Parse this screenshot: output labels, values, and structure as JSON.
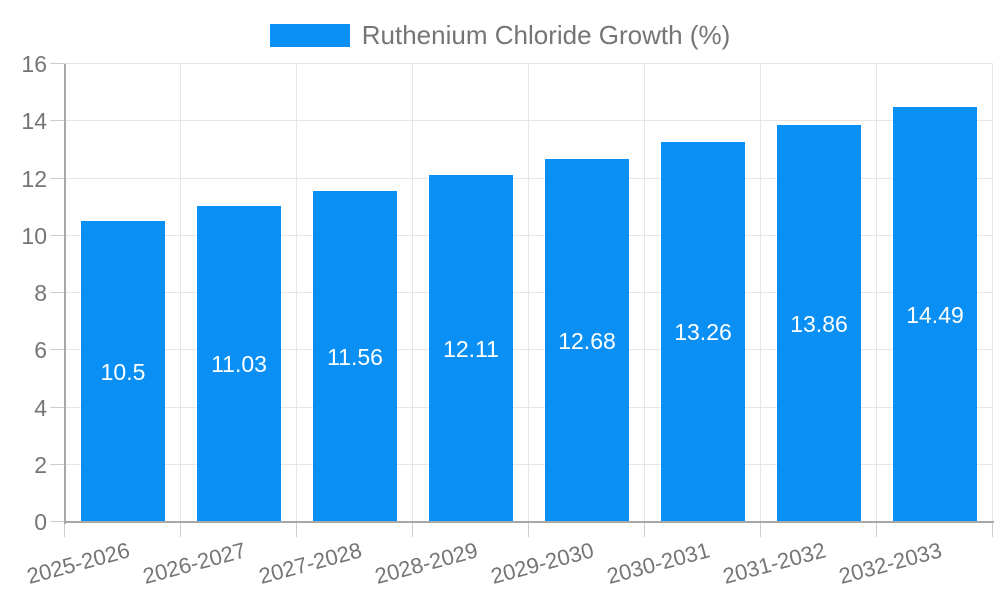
{
  "legend": {
    "label": "Ruthenium Chloride Growth (%)"
  },
  "colors": {
    "bar": "#0a90f5",
    "gridline": "#e6e6e6",
    "tick": "#cccccc",
    "axis": "#a8a8a8",
    "text": "#757575",
    "value_label": "#ffffff",
    "background": "#ffffff"
  },
  "chart_data": {
    "type": "bar",
    "title": "",
    "series_name": "Ruthenium Chloride Growth (%)",
    "categories": [
      "2025-2026",
      "2026-2027",
      "2027-2028",
      "2028-2029",
      "2029-2030",
      "2030-2031",
      "2031-2032",
      "2032-2033"
    ],
    "values": [
      10.5,
      11.03,
      11.56,
      12.11,
      12.68,
      13.26,
      13.86,
      14.49
    ],
    "value_labels": [
      "10.5",
      "11.03",
      "11.56",
      "12.11",
      "12.68",
      "13.26",
      "13.86",
      "14.49"
    ],
    "xlabel": "",
    "ylabel": "",
    "ylim": [
      0,
      16
    ],
    "yticks": [
      0,
      2,
      4,
      6,
      8,
      10,
      12,
      14,
      16
    ],
    "grid": true,
    "legend_position": "top-center",
    "value_labels_shown": true
  }
}
